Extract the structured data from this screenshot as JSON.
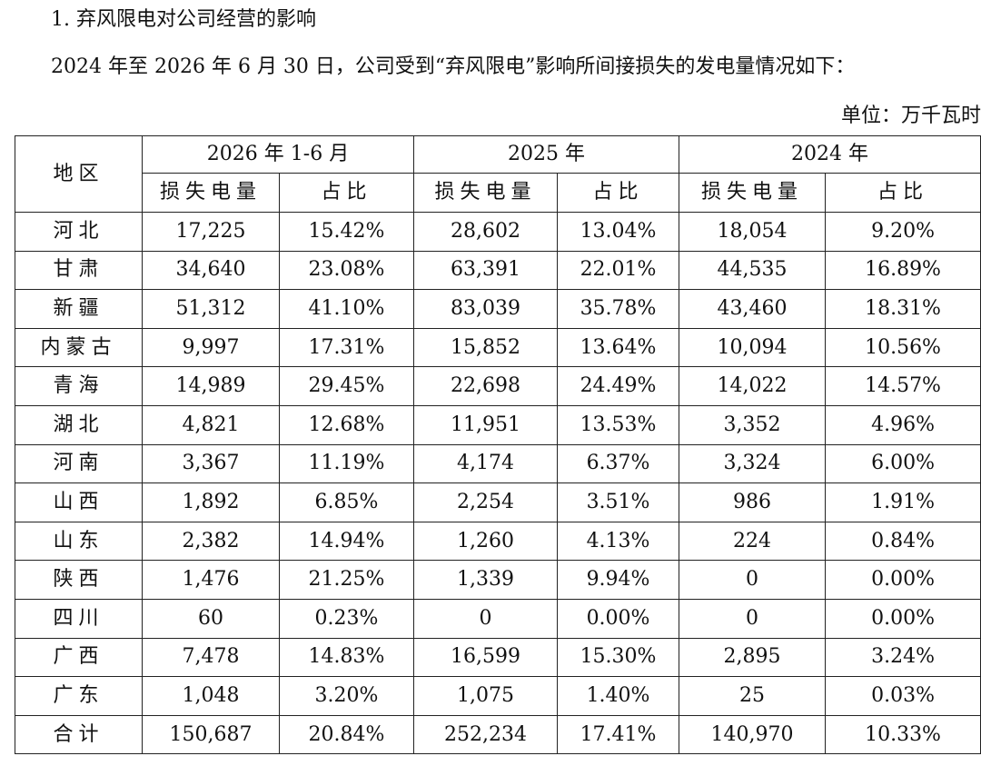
{
  "heading": "1. 弃风限电对公司经营的影响",
  "intro": "2024 年至 2026 年 6 月 30 日，公司受到“弃风限电”影响所间接损失的发电量情况如下：",
  "unit": "单位：万千瓦时",
  "table": {
    "region_header": "地区",
    "periods": [
      "2026 年 1-6 月",
      "2025 年",
      "2024 年"
    ],
    "sub_headers": [
      "损失电量",
      "占比"
    ],
    "rows": [
      {
        "region": "河北",
        "cells": [
          "17,225",
          "15.42%",
          "28,602",
          "13.04%",
          "18,054",
          "9.20%"
        ]
      },
      {
        "region": "甘肃",
        "cells": [
          "34,640",
          "23.08%",
          "63,391",
          "22.01%",
          "44,535",
          "16.89%"
        ]
      },
      {
        "region": "新疆",
        "cells": [
          "51,312",
          "41.10%",
          "83,039",
          "35.78%",
          "43,460",
          "18.31%"
        ]
      },
      {
        "region": "内蒙古",
        "cells": [
          "9,997",
          "17.31%",
          "15,852",
          "13.64%",
          "10,094",
          "10.56%"
        ]
      },
      {
        "region": "青海",
        "cells": [
          "14,989",
          "29.45%",
          "22,698",
          "24.49%",
          "14,022",
          "14.57%"
        ]
      },
      {
        "region": "湖北",
        "cells": [
          "4,821",
          "12.68%",
          "11,951",
          "13.53%",
          "3,352",
          "4.96%"
        ]
      },
      {
        "region": "河南",
        "cells": [
          "3,367",
          "11.19%",
          "4,174",
          "6.37%",
          "3,324",
          "6.00%"
        ]
      },
      {
        "region": "山西",
        "cells": [
          "1,892",
          "6.85%",
          "2,254",
          "3.51%",
          "986",
          "1.91%"
        ]
      },
      {
        "region": "山东",
        "cells": [
          "2,382",
          "14.94%",
          "1,260",
          "4.13%",
          "224",
          "0.84%"
        ]
      },
      {
        "region": "陕西",
        "cells": [
          "1,476",
          "21.25%",
          "1,339",
          "9.94%",
          "0",
          "0.00%"
        ]
      },
      {
        "region": "四川",
        "cells": [
          "60",
          "0.23%",
          "0",
          "0.00%",
          "0",
          "0.00%"
        ]
      },
      {
        "region": "广西",
        "cells": [
          "7,478",
          "14.83%",
          "16,599",
          "15.30%",
          "2,895",
          "3.24%"
        ]
      },
      {
        "region": "广东",
        "cells": [
          "1,048",
          "3.20%",
          "1,075",
          "1.40%",
          "25",
          "0.03%"
        ]
      },
      {
        "region": "合计",
        "cells": [
          "150,687",
          "20.84%",
          "252,234",
          "17.41%",
          "140,970",
          "10.33%"
        ]
      }
    ]
  }
}
